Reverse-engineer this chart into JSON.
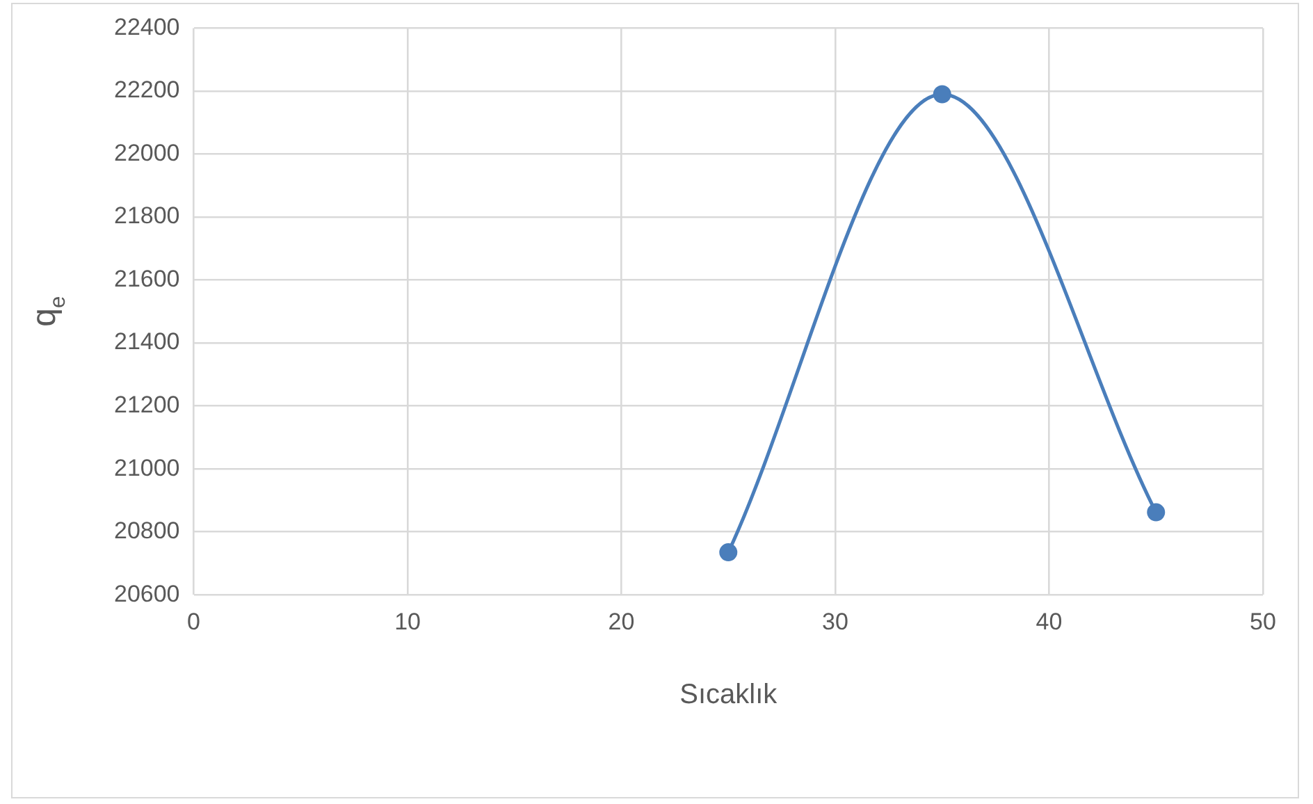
{
  "chart_data": {
    "type": "line",
    "xlabel": "Sıcaklık",
    "ylabel": "q$_{e}$",
    "x": [
      25,
      35,
      45
    ],
    "series": [
      {
        "color": "#4a7ebb",
        "values": [
          20735,
          22190,
          20862
        ]
      }
    ],
    "xlim": [
      0,
      50
    ],
    "xticks": [
      0,
      10,
      20,
      30,
      40,
      50
    ],
    "ylim": [
      20600,
      22400
    ],
    "yticks": [
      20600,
      20800,
      21000,
      21200,
      21400,
      21600,
      21800,
      22000,
      22200,
      22400
    ],
    "grid": true,
    "legend": false,
    "marker": "circle",
    "line_style": "solid"
  }
}
